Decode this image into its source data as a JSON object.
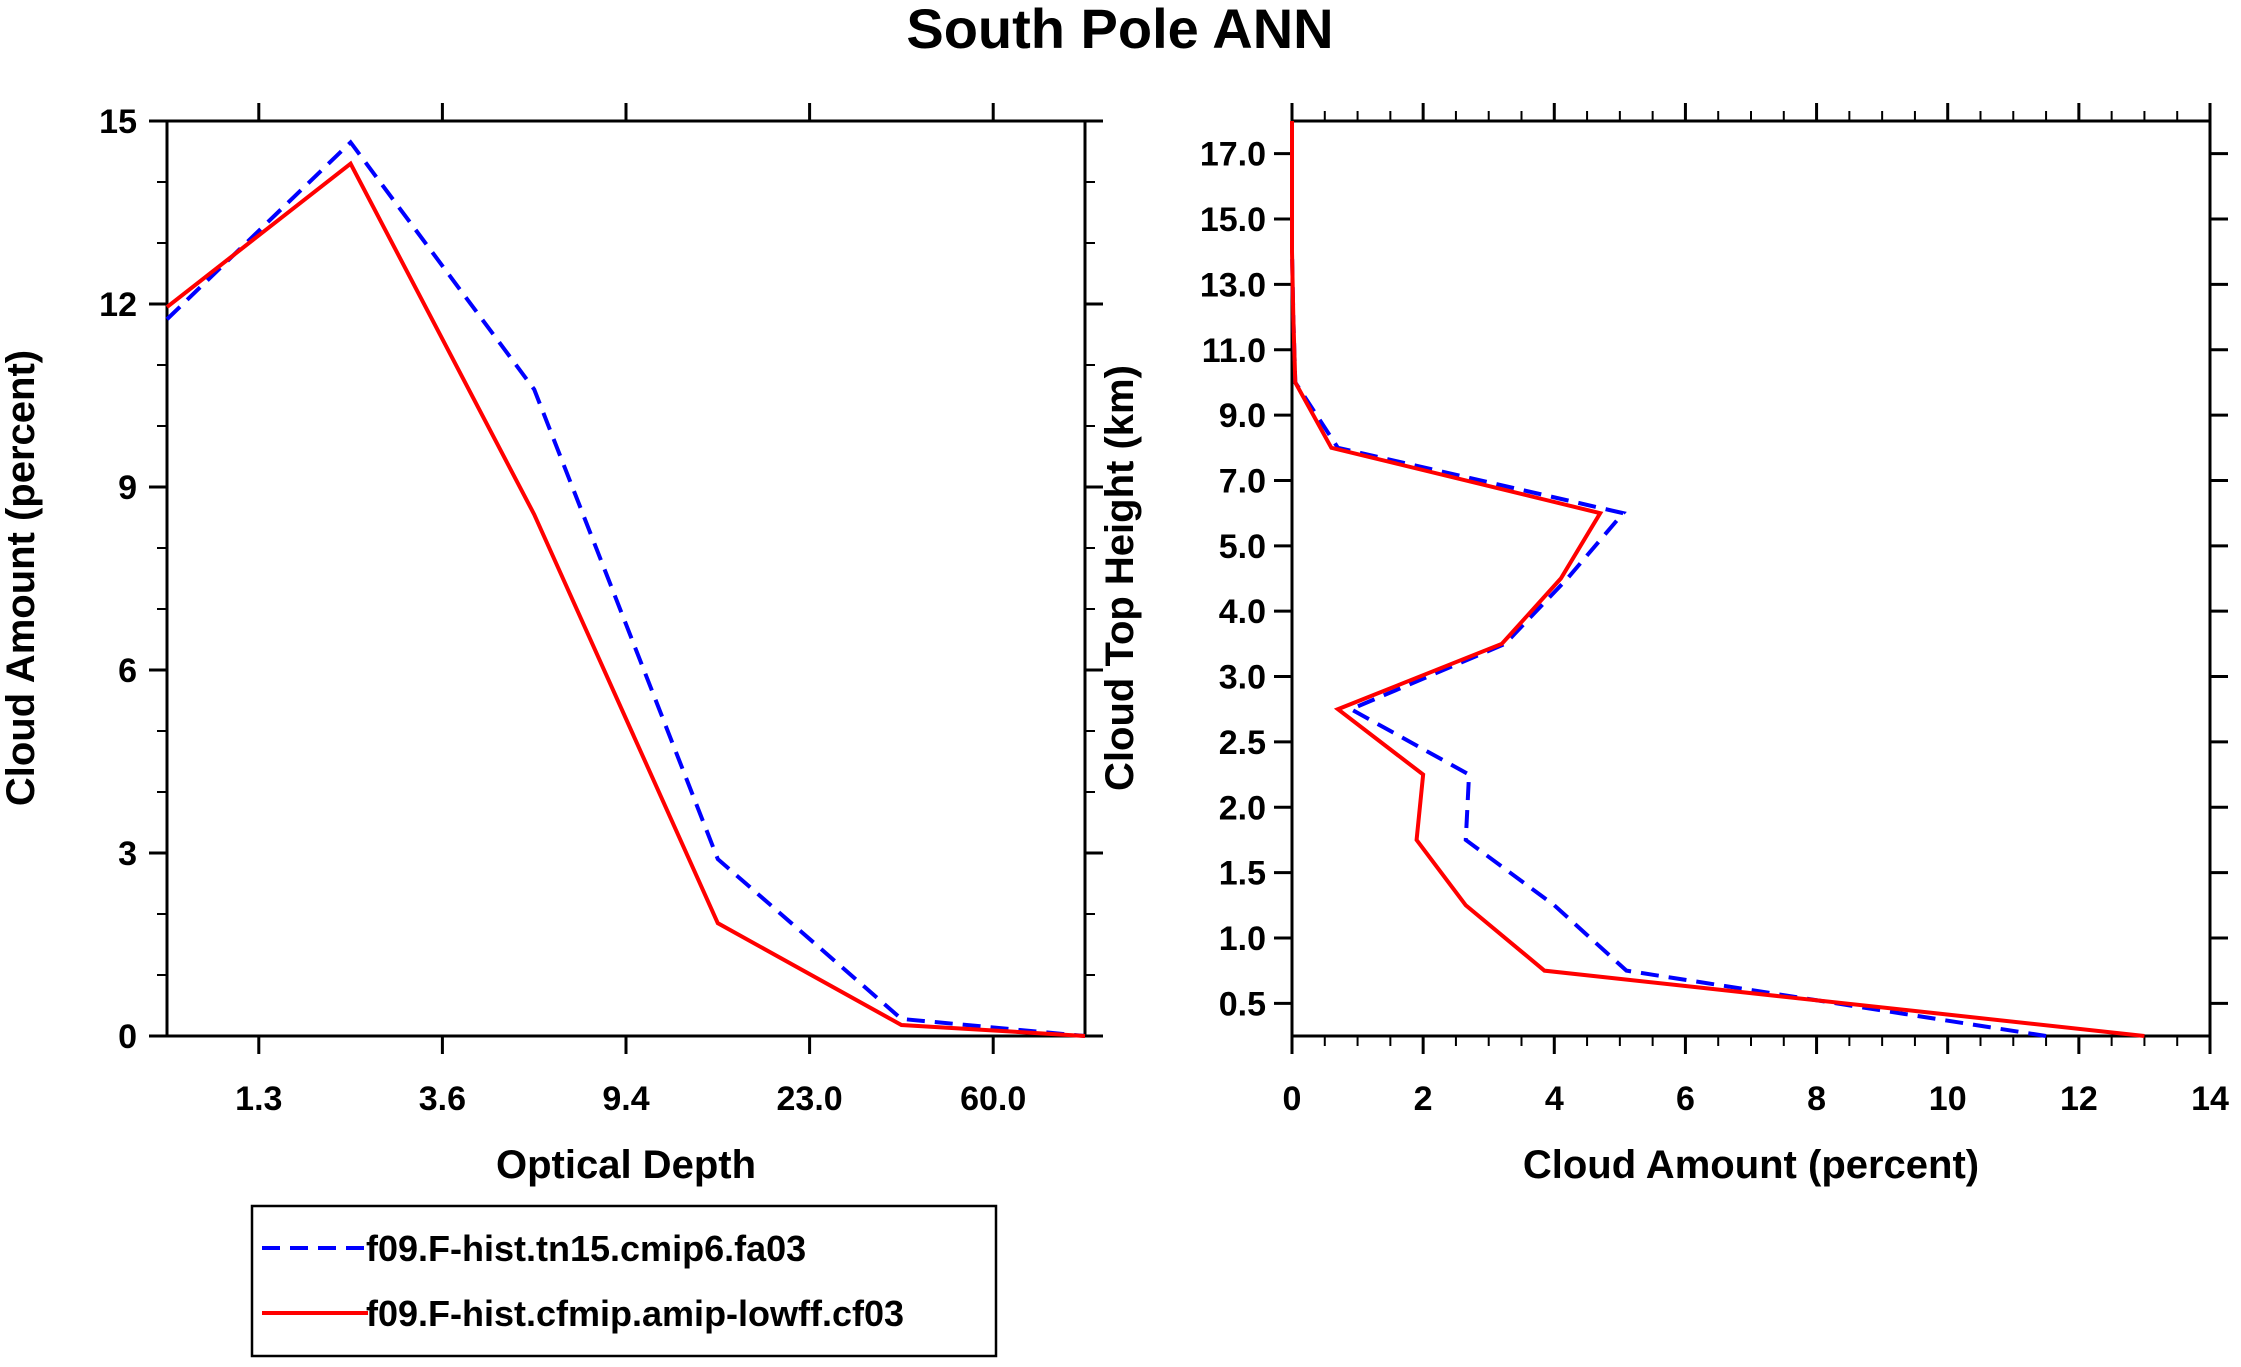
{
  "title": "South Pole ANN",
  "colors": {
    "model_a": "#0000ff",
    "model_b": "#ff0000",
    "axes": "#000000"
  },
  "legend": [
    {
      "label": "f09.F-hist.tn15.cmip6.fa03",
      "color": "#0000ff",
      "style": "dashed"
    },
    {
      "label": "f09.F-hist.cfmip.amip-lowff.cf03",
      "color": "#ff0000",
      "style": "solid"
    }
  ],
  "chart_data": [
    {
      "type": "line",
      "panel": "left",
      "xlabel": "Optical Depth",
      "ylabel": "Cloud Amount (percent)",
      "x_tick_labels": [
        "1.3",
        "3.6",
        "9.4",
        "23.0",
        "60.0"
      ],
      "x_tick_bin_index": [
        0.5,
        1.5,
        2.5,
        3.5,
        4.5
      ],
      "xlim_bin_index": [
        0,
        5
      ],
      "y_ticks": [
        0,
        3,
        6,
        9,
        12,
        15
      ],
      "ylim": [
        0,
        15
      ],
      "y_minor_step": 1,
      "bin_index": [
        0,
        1,
        2,
        3,
        4,
        5
      ],
      "series": [
        {
          "name": "f09.F-hist.tn15.cmip6.fa03",
          "color": "#0000ff",
          "style": "dashed",
          "values": [
            11.75,
            14.65,
            10.6,
            2.9,
            0.28,
            0.0
          ]
        },
        {
          "name": "f09.F-hist.cfmip.amip-lowff.cf03",
          "color": "#ff0000",
          "style": "solid",
          "values": [
            11.95,
            14.3,
            8.55,
            1.85,
            0.18,
            0.0
          ]
        }
      ]
    },
    {
      "type": "line",
      "panel": "right",
      "xlabel": "Cloud Amount (percent)",
      "ylabel": "Cloud Top Height (km)",
      "x_ticks": [
        0,
        2,
        4,
        6,
        8,
        10,
        12,
        14
      ],
      "xlim": [
        0,
        14
      ],
      "x_minor_step": 0.5,
      "y_tick_labels": [
        "0.5",
        "1.0",
        "1.5",
        "2.0",
        "2.5",
        "3.0",
        "4.0",
        "5.0",
        "7.0",
        "9.0",
        "11.0",
        "13.0",
        "15.0",
        "17.0"
      ],
      "y_tick_level_index": [
        0.5,
        1.5,
        2.5,
        3.5,
        4.5,
        5.5,
        6.5,
        7.5,
        8.5,
        9.5,
        10.5,
        11.5,
        12.5,
        13.5
      ],
      "ylim_level_index": [
        0,
        14
      ],
      "level_index": [
        0,
        1,
        2,
        3,
        4,
        5,
        6,
        7,
        8,
        9,
        10,
        11,
        12,
        13,
        14
      ],
      "series": [
        {
          "name": "f09.F-hist.tn15.cmip6.fa03",
          "color": "#0000ff",
          "style": "dashed",
          "values": [
            11.5,
            5.1,
            4.0,
            2.65,
            2.7,
            0.9,
            3.25,
            4.2,
            5.05,
            0.7,
            0.05,
            0.02,
            0.0,
            0.0,
            0.0
          ]
        },
        {
          "name": "f09.F-hist.cfmip.amip-lowff.cf03",
          "color": "#ff0000",
          "style": "solid",
          "values": [
            13.0,
            3.85,
            2.65,
            1.9,
            2.0,
            0.7,
            3.2,
            4.1,
            4.7,
            0.6,
            0.05,
            0.02,
            0.0,
            0.0,
            0.0
          ]
        }
      ]
    }
  ]
}
